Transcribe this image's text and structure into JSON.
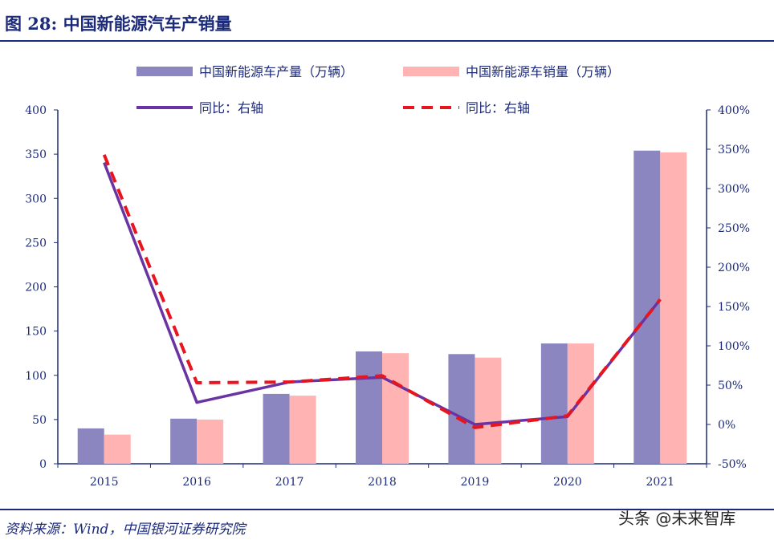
{
  "figure": {
    "title": "图 28:  中国新能源汽车产销量",
    "source": "资料来源：Wind，中国银河证券研究院",
    "watermark": "头条 @未来智库"
  },
  "colors": {
    "production": "#8b86c0",
    "sales": "#ffb3b3",
    "yoy_production": "#6a33a3",
    "yoy_sales": "#e8141e",
    "axis": "#1c2a7a"
  },
  "chart_data": {
    "type": "bar",
    "categories": [
      "2015",
      "2016",
      "2017",
      "2018",
      "2019",
      "2020",
      "2021"
    ],
    "series": [
      {
        "name": "中国新能源车产量（万辆）",
        "type": "bar",
        "axis": "left",
        "values": [
          40,
          51,
          79,
          127,
          124,
          136,
          354
        ]
      },
      {
        "name": "中国新能源车销量（万辆）",
        "type": "bar",
        "axis": "left",
        "values": [
          33,
          50,
          77,
          125,
          120,
          136,
          352
        ]
      },
      {
        "name": "同比：右轴",
        "type": "line",
        "style": "solid",
        "axis": "right",
        "values": [
          333,
          28,
          54,
          60,
          0,
          10,
          159
        ]
      },
      {
        "name": "同比：右轴",
        "type": "line",
        "style": "dashed",
        "axis": "right",
        "values": [
          343,
          53,
          54,
          62,
          -4,
          11,
          159
        ]
      }
    ],
    "ylim": [
      0,
      400
    ],
    "y_ticks": [
      "0",
      "50",
      "100",
      "150",
      "200",
      "250",
      "300",
      "350",
      "400"
    ],
    "y2lim": [
      -50,
      400
    ],
    "y2_ticks": [
      "-50%",
      "0%",
      "50%",
      "100%",
      "150%",
      "200%",
      "250%",
      "300%",
      "350%",
      "400%"
    ],
    "legend_position": "top",
    "grid": false
  }
}
